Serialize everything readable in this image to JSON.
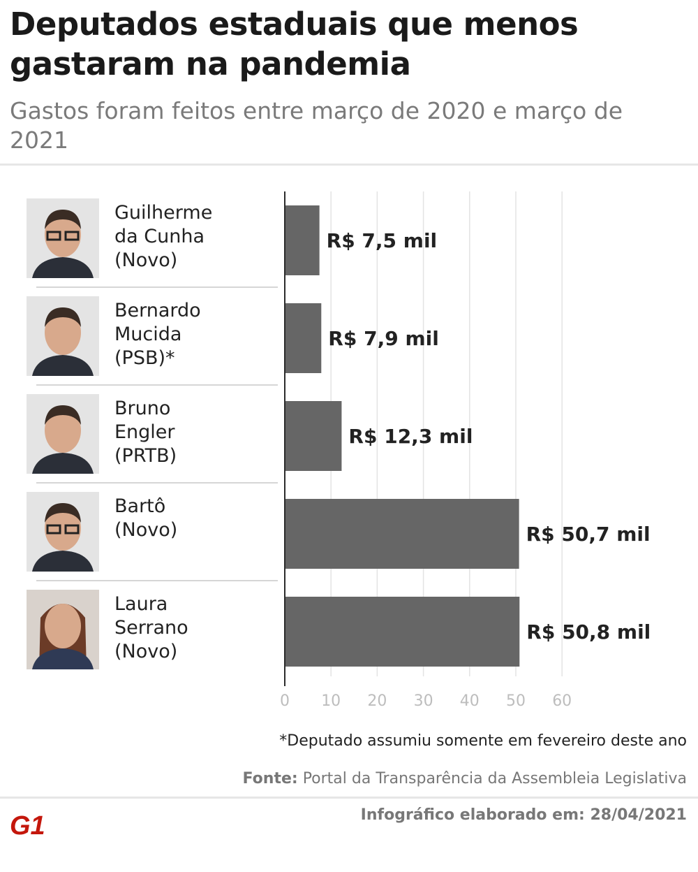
{
  "header": {
    "title": "Deputados estaduais que menos gastaram na pandemia",
    "subtitle": "Gastos foram feitos entre março de 2020 e março de 2021"
  },
  "colors": {
    "bar": "#666666",
    "grid": "#e3e3e3",
    "axis": "#2b2b2b",
    "tick": "#bdbdbd",
    "brand": "#c4170c"
  },
  "deputies": [
    {
      "name": "Guilherme\nda Cunha\n(Novo)",
      "photo": "man-glasses-photo"
    },
    {
      "name": "Bernardo\nMucida\n(PSB)*",
      "photo": "man-photo"
    },
    {
      "name": "Bruno\nEngler\n(PRTB)",
      "photo": "man-suit-photo"
    },
    {
      "name": "Bartô\n(Novo)",
      "photo": "man-glasses-beard-photo"
    },
    {
      "name": "Laura\nSerrano\n(Novo)",
      "photo": "woman-photo"
    }
  ],
  "chart_data": {
    "type": "bar",
    "orientation": "horizontal",
    "categories": [
      "Guilherme da Cunha (Novo)",
      "Bernardo Mucida (PSB)*",
      "Bruno Engler (PRTB)",
      "Bartô (Novo)",
      "Laura Serrano (Novo)"
    ],
    "values": [
      7.5,
      7.9,
      12.3,
      50.7,
      50.8
    ],
    "labels": [
      "R$ 7,5 mil",
      "R$ 7,9 mil",
      "R$ 12,3 mil",
      "R$ 50,7 mil",
      "R$ 50,8 mil"
    ],
    "xticks": [
      "0",
      "10",
      "20",
      "30",
      "40",
      "50",
      "60"
    ],
    "xlim": [
      0,
      60
    ],
    "grid": true
  },
  "footer": {
    "footnote": "*Deputado assumiu somente em fevereiro deste ano",
    "source_label": "Fonte:",
    "source_text": " Portal da Transparência da Assembleia Legislativa",
    "credit": "Infográfico elaborado em: 28/04/2021",
    "logo_text": "G1"
  }
}
